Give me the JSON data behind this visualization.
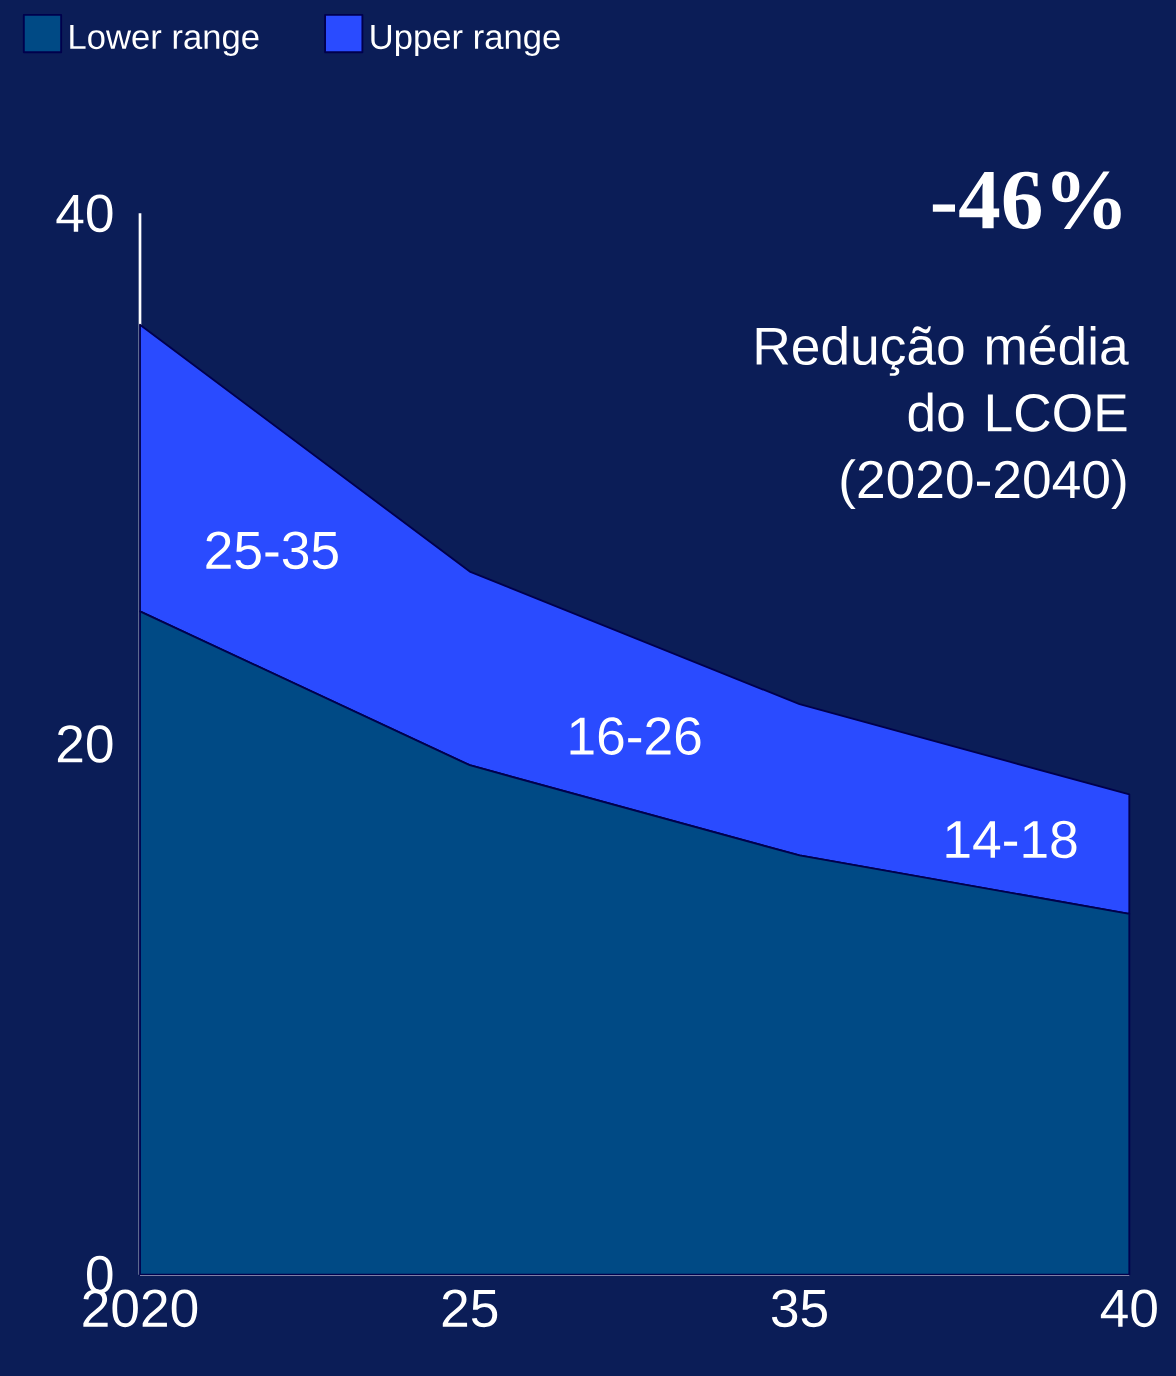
{
  "chart_data": {
    "type": "area",
    "stacked": true,
    "categories": [
      "2020",
      "25",
      "35",
      "40"
    ],
    "series": [
      {
        "name": "Lower range",
        "color": "#004a85",
        "values": [
          25,
          19.2,
          15.8,
          13.6
        ]
      },
      {
        "name": "Upper range",
        "color": "#2a4bff",
        "values": [
          10.8,
          7.3,
          5.7,
          4.5
        ]
      }
    ],
    "ylim": [
      0,
      40
    ],
    "yticks": [
      0,
      20,
      40
    ],
    "legend": "top left",
    "annotations": [
      "25-35",
      "16-26",
      "14-18",
      "-46%",
      "Redução média do LCOE (2020-2040)"
    ]
  }
}
